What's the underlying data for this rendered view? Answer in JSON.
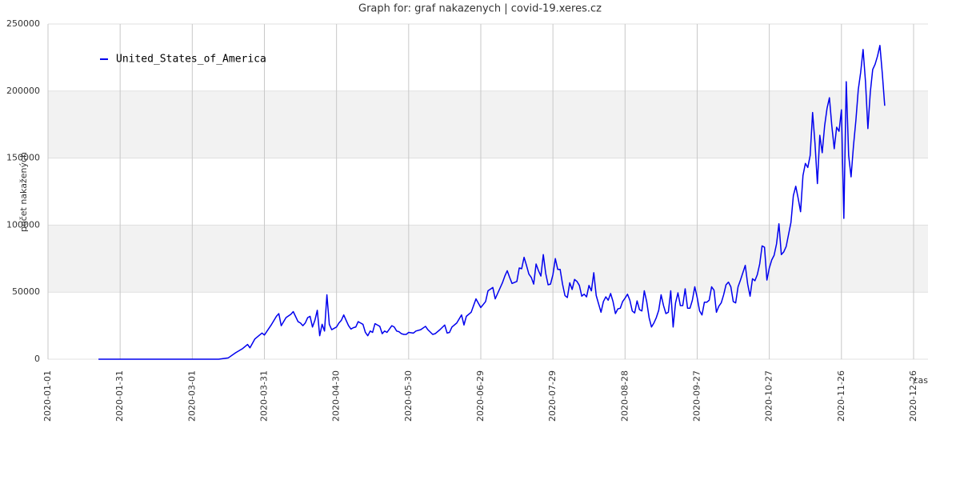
{
  "chart_data": {
    "type": "line",
    "title": "Graph for: graf nakazenych | covid-19.xeres.cz",
    "y_label": "počet nakažených",
    "x_label": "cas",
    "legend": "upper left",
    "grid": true,
    "xlim": [
      "2020-01-01",
      "2021-01-01"
    ],
    "xticks": [
      "2020-01-01",
      "2020-01-31",
      "2020-03-01",
      "2020-03-31",
      "2020-04-30",
      "2020-05-30",
      "2020-06-29",
      "2020-07-29",
      "2020-08-28",
      "2020-09-27",
      "2020-10-27",
      "2020-11-26",
      "2020-12-26"
    ],
    "ylim": [
      0,
      250000
    ],
    "yticks": [
      0,
      50000,
      100000,
      150000,
      200000,
      250000
    ],
    "x": [
      "2020-01-22",
      "2020-03-01",
      "2020-03-12",
      "2020-03-16",
      "2020-03-19",
      "2020-03-22",
      "2020-03-24",
      "2020-03-25",
      "2020-03-27",
      "2020-03-30",
      "2020-03-31",
      "2020-04-03",
      "2020-04-05",
      "2020-04-06",
      "2020-04-07",
      "2020-04-09",
      "2020-04-11",
      "2020-04-12",
      "2020-04-14",
      "2020-04-15",
      "2020-04-16",
      "2020-04-17",
      "2020-04-18",
      "2020-04-19",
      "2020-04-20",
      "2020-04-21",
      "2020-04-22",
      "2020-04-23",
      "2020-04-24",
      "2020-04-25",
      "2020-04-26",
      "2020-04-27",
      "2020-04-28",
      "2020-04-29",
      "2020-04-30",
      "2020-05-01",
      "2020-05-02",
      "2020-05-03",
      "2020-05-04",
      "2020-05-05",
      "2020-05-06",
      "2020-05-07",
      "2020-05-08",
      "2020-05-09",
      "2020-05-10",
      "2020-05-11",
      "2020-05-12",
      "2020-05-13",
      "2020-05-14",
      "2020-05-15",
      "2020-05-16",
      "2020-05-17",
      "2020-05-18",
      "2020-05-19",
      "2020-05-20",
      "2020-05-21",
      "2020-05-22",
      "2020-05-23",
      "2020-05-24",
      "2020-05-25",
      "2020-05-26",
      "2020-05-27",
      "2020-05-28",
      "2020-05-29",
      "2020-05-30",
      "2020-06-01",
      "2020-06-02",
      "2020-06-04",
      "2020-06-06",
      "2020-06-07",
      "2020-06-09",
      "2020-06-10",
      "2020-06-12",
      "2020-06-14",
      "2020-06-15",
      "2020-06-16",
      "2020-06-17",
      "2020-06-19",
      "2020-06-21",
      "2020-06-22",
      "2020-06-23",
      "2020-06-25",
      "2020-06-27",
      "2020-06-29",
      "2020-07-01",
      "2020-07-02",
      "2020-07-04",
      "2020-07-05",
      "2020-07-06",
      "2020-07-08",
      "2020-07-09",
      "2020-07-10",
      "2020-07-11",
      "2020-07-12",
      "2020-07-14",
      "2020-07-15",
      "2020-07-16",
      "2020-07-17",
      "2020-07-18",
      "2020-07-19",
      "2020-07-20",
      "2020-07-21",
      "2020-07-22",
      "2020-07-23",
      "2020-07-24",
      "2020-07-25",
      "2020-07-26",
      "2020-07-27",
      "2020-07-28",
      "2020-07-29",
      "2020-07-30",
      "2020-07-31",
      "2020-08-01",
      "2020-08-02",
      "2020-08-03",
      "2020-08-04",
      "2020-08-05",
      "2020-08-06",
      "2020-08-07",
      "2020-08-08",
      "2020-08-09",
      "2020-08-10",
      "2020-08-11",
      "2020-08-12",
      "2020-08-13",
      "2020-08-14",
      "2020-08-15",
      "2020-08-16",
      "2020-08-18",
      "2020-08-19",
      "2020-08-20",
      "2020-08-21",
      "2020-08-22",
      "2020-08-23",
      "2020-08-24",
      "2020-08-25",
      "2020-08-26",
      "2020-08-27",
      "2020-08-28",
      "2020-08-29",
      "2020-08-30",
      "2020-08-31",
      "2020-09-01",
      "2020-09-02",
      "2020-09-03",
      "2020-09-04",
      "2020-09-05",
      "2020-09-06",
      "2020-09-07",
      "2020-09-08",
      "2020-09-09",
      "2020-09-10",
      "2020-09-11",
      "2020-09-12",
      "2020-09-13",
      "2020-09-14",
      "2020-09-15",
      "2020-09-16",
      "2020-09-17",
      "2020-09-18",
      "2020-09-19",
      "2020-09-20",
      "2020-09-21",
      "2020-09-22",
      "2020-09-23",
      "2020-09-24",
      "2020-09-25",
      "2020-09-26",
      "2020-09-27",
      "2020-09-28",
      "2020-09-29",
      "2020-09-30",
      "2020-10-01",
      "2020-10-02",
      "2020-10-03",
      "2020-10-04",
      "2020-10-05",
      "2020-10-06",
      "2020-10-07",
      "2020-10-08",
      "2020-10-09",
      "2020-10-10",
      "2020-10-11",
      "2020-10-12",
      "2020-10-13",
      "2020-10-14",
      "2020-10-15",
      "2020-10-16",
      "2020-10-17",
      "2020-10-18",
      "2020-10-19",
      "2020-10-20",
      "2020-10-21",
      "2020-10-22",
      "2020-10-23",
      "2020-10-24",
      "2020-10-25",
      "2020-10-26",
      "2020-10-27",
      "2020-10-28",
      "2020-10-29",
      "2020-10-30",
      "2020-10-31",
      "2020-11-01",
      "2020-11-02",
      "2020-11-03",
      "2020-11-04",
      "2020-11-05",
      "2020-11-06",
      "2020-11-07",
      "2020-11-08",
      "2020-11-09",
      "2020-11-10",
      "2020-11-11",
      "2020-11-12",
      "2020-11-13",
      "2020-11-14",
      "2020-11-15",
      "2020-11-16",
      "2020-11-17",
      "2020-11-18",
      "2020-11-19",
      "2020-11-20",
      "2020-11-21",
      "2020-11-22",
      "2020-11-23",
      "2020-11-24",
      "2020-11-25",
      "2020-11-26",
      "2020-11-27",
      "2020-11-28",
      "2020-11-29",
      "2020-11-30",
      "2020-12-01",
      "2020-12-02",
      "2020-12-03",
      "2020-12-04",
      "2020-12-05",
      "2020-12-06",
      "2020-12-07",
      "2020-12-08",
      "2020-12-09",
      "2020-12-10",
      "2020-12-11",
      "2020-12-12",
      "2020-12-13",
      "2020-12-14"
    ],
    "series": [
      {
        "name": "United_States_of_America",
        "color": "#0000ee",
        "values": [
          0,
          0,
          0,
          1000,
          4800,
          8000,
          11000,
          8500,
          15000,
          19500,
          18000,
          26000,
          32000,
          34000,
          25000,
          31000,
          33500,
          35500,
          28000,
          27000,
          25000,
          27000,
          31000,
          32000,
          24000,
          29000,
          36500,
          17500,
          26000,
          21000,
          48000,
          26000,
          22000,
          23000,
          24000,
          27000,
          29000,
          33000,
          29000,
          25000,
          22500,
          23500,
          24000,
          28000,
          27000,
          26000,
          20000,
          17500,
          21000,
          20000,
          26500,
          25500,
          24500,
          19000,
          21000,
          20000,
          22500,
          25000,
          24000,
          21000,
          20500,
          19000,
          18500,
          18500,
          20000,
          19500,
          21000,
          22000,
          24500,
          22000,
          18500,
          19000,
          22000,
          25500,
          19500,
          20000,
          24000,
          27000,
          33000,
          25500,
          32000,
          35000,
          45000,
          38500,
          43000,
          51000,
          53500,
          45000,
          49000,
          57000,
          62000,
          66000,
          61000,
          56500,
          58000,
          68000,
          67500,
          76000,
          70000,
          63500,
          61000,
          56000,
          71000,
          66000,
          62000,
          78000,
          64000,
          55500,
          56000,
          63000,
          75000,
          67000,
          67000,
          56000,
          47500,
          46000,
          57000,
          52000,
          59500,
          58000,
          55000,
          47000,
          48500,
          46500,
          55000,
          51000,
          64500,
          47500,
          35000,
          43000,
          46500,
          44000,
          49000,
          43000,
          34000,
          37500,
          38000,
          43000,
          45500,
          48500,
          44000,
          36000,
          34500,
          43500,
          37000,
          36000,
          51000,
          43000,
          31000,
          24000,
          27000,
          31000,
          36500,
          48000,
          40000,
          34000,
          35000,
          51000,
          24000,
          42000,
          49500,
          40000,
          40000,
          52500,
          38000,
          38000,
          44000,
          54000,
          46000,
          36000,
          33000,
          42500,
          42500,
          44000,
          54000,
          51500,
          35000,
          39500,
          42000,
          48000,
          55500,
          57500,
          54000,
          43000,
          42000,
          54000,
          59000,
          64500,
          70000,
          56000,
          47000,
          60000,
          58500,
          63000,
          71000,
          84500,
          83500,
          59000,
          68000,
          74000,
          77500,
          86000,
          101000,
          78000,
          80000,
          84000,
          93000,
          102000,
          122000,
          129000,
          120000,
          110000,
          137000,
          146000,
          143000,
          152000,
          184000,
          161000,
          131000,
          167000,
          154000,
          174000,
          187000,
          195000,
          174000,
          157000,
          173000,
          170000,
          186000,
          105000,
          207000,
          152000,
          136000,
          159000,
          178000,
          201000,
          214000,
          231000,
          207000,
          172000,
          199000,
          216000,
          220000,
          226000,
          234000,
          213000,
          189000
        ]
      }
    ]
  }
}
